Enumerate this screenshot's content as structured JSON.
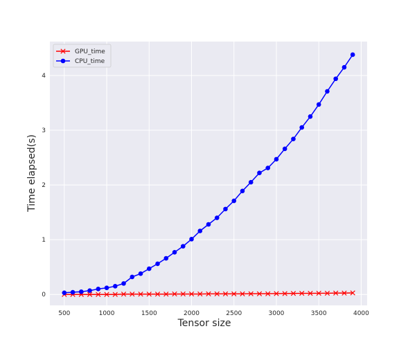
{
  "chart_data": {
    "type": "line",
    "title": "",
    "xlabel": "Tensor size",
    "ylabel": "Time elapsed(s)",
    "xlim": [
      330,
      4070
    ],
    "ylim": [
      -0.2,
      4.62
    ],
    "xticks": [
      500,
      1000,
      1500,
      2000,
      2500,
      3000,
      3500,
      4000
    ],
    "yticks": [
      0,
      1,
      2,
      3,
      4
    ],
    "grid": true,
    "legend_position": "top-left",
    "x": [
      500,
      600,
      700,
      800,
      900,
      1000,
      1100,
      1200,
      1300,
      1400,
      1500,
      1600,
      1700,
      1800,
      1900,
      2000,
      2100,
      2200,
      2300,
      2400,
      2500,
      2600,
      2700,
      2800,
      2900,
      3000,
      3100,
      3200,
      3300,
      3400,
      3500,
      3600,
      3700,
      3800,
      3900
    ],
    "series": [
      {
        "name": "GPU_time",
        "color": "#ff0000",
        "marker": "x",
        "values": [
          0.0,
          0.0,
          0.0,
          0.0,
          0.0,
          0.0,
          0.0,
          0.005,
          0.005,
          0.005,
          0.005,
          0.005,
          0.005,
          0.008,
          0.008,
          0.008,
          0.008,
          0.01,
          0.01,
          0.01,
          0.01,
          0.01,
          0.012,
          0.012,
          0.012,
          0.015,
          0.015,
          0.018,
          0.02,
          0.02,
          0.022,
          0.022,
          0.025,
          0.025,
          0.028
        ]
      },
      {
        "name": "CPU_time",
        "color": "#0000ff",
        "marker": "o",
        "values": [
          0.03,
          0.04,
          0.05,
          0.07,
          0.1,
          0.12,
          0.15,
          0.2,
          0.32,
          0.38,
          0.47,
          0.56,
          0.66,
          0.77,
          0.88,
          1.01,
          1.16,
          1.28,
          1.4,
          1.56,
          1.71,
          1.89,
          2.05,
          2.22,
          2.31,
          2.47,
          2.66,
          2.84,
          3.05,
          3.25,
          3.47,
          3.71,
          3.94,
          4.15,
          4.38
        ]
      }
    ]
  }
}
